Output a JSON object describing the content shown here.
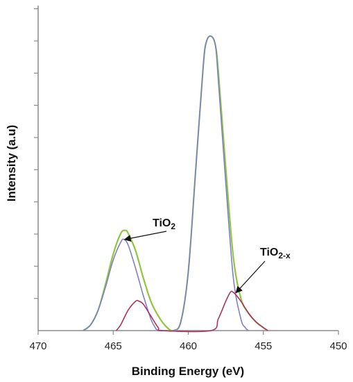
{
  "chart_data": {
    "type": "line",
    "title": "",
    "xlabel": "Binding Energy (eV)",
    "ylabel": "Intensity (a.u)",
    "x_reversed": true,
    "xlim": [
      470,
      450
    ],
    "ylim": [
      0,
      1
    ],
    "x_ticks": [
      470,
      465,
      460,
      455,
      450
    ],
    "y_ticks_labeled": false,
    "y_minor_tick_count": 10,
    "grid": false,
    "legend": "none",
    "series": [
      {
        "color": "#8ec63f",
        "x": [
          467.0,
          466.5,
          466.0,
          465.5,
          465.0,
          464.5,
          464.2,
          464.0,
          463.5,
          463.0,
          462.5,
          462.0,
          461.5,
          461.0,
          460.5,
          460.0,
          459.5,
          459.0,
          458.8,
          458.5,
          458.2,
          458.0,
          457.5,
          457.0,
          456.5,
          456.0,
          455.5,
          455.0,
          454.7
        ],
        "y": [
          0.0,
          0.02,
          0.07,
          0.16,
          0.26,
          0.33,
          0.34,
          0.33,
          0.27,
          0.18,
          0.1,
          0.05,
          0.015,
          0.0,
          0.03,
          0.2,
          0.55,
          0.9,
          0.98,
          1.0,
          0.97,
          0.88,
          0.55,
          0.25,
          0.11,
          0.06,
          0.03,
          0.01,
          0.0
        ]
      },
      {
        "color": "#7f7fc8",
        "x": [
          467.0,
          466.5,
          466.0,
          465.5,
          465.0,
          464.5,
          464.3,
          464.0,
          463.5,
          463.0,
          462.5,
          462.2,
          462.0,
          461.5,
          461.0,
          460.5,
          460.0,
          459.5,
          459.0,
          458.8,
          458.5,
          458.2,
          458.0,
          457.5,
          457.0,
          456.5,
          456.2,
          456.0
        ],
        "y": [
          0.0,
          0.02,
          0.07,
          0.15,
          0.24,
          0.3,
          0.31,
          0.29,
          0.21,
          0.12,
          0.04,
          0.01,
          0.0,
          0.0,
          0.0,
          0.03,
          0.2,
          0.55,
          0.9,
          0.98,
          1.0,
          0.97,
          0.85,
          0.5,
          0.18,
          0.04,
          0.01,
          0.0
        ]
      },
      {
        "color": "#b03060",
        "x": [
          464.8,
          464.5,
          464.0,
          463.5,
          463.3,
          463.0,
          462.5,
          462.0,
          461.7,
          458.5,
          458.0,
          457.5,
          457.2,
          457.0,
          456.5,
          456.0,
          455.5,
          455.0,
          454.7
        ],
        "y": [
          0.0,
          0.02,
          0.07,
          0.1,
          0.1,
          0.09,
          0.05,
          0.01,
          0.0,
          0.0,
          0.04,
          0.1,
          0.13,
          0.13,
          0.1,
          0.06,
          0.03,
          0.01,
          0.0
        ]
      }
    ],
    "annotations": [
      {
        "base": "TiO",
        "sub": "2",
        "arrow_to": [
          464.2,
          0.31
        ]
      },
      {
        "base": "TiO",
        "sub": "2-x",
        "arrow_to": [
          456.8,
          0.13
        ]
      }
    ]
  }
}
